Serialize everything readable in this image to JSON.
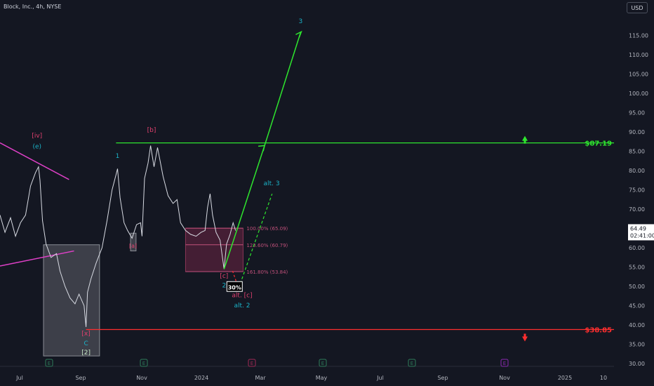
{
  "header": {
    "title": "Block, Inc., 4h, NYSE",
    "currency": "USD"
  },
  "price_tag": {
    "value": "64.49",
    "countdown": "02:41:00"
  },
  "chart_data": {
    "type": "line",
    "title": "Block, Inc., 4h, NYSE",
    "y_axis": {
      "min": 30,
      "max": 115,
      "ticks": [
        30,
        35,
        40,
        45,
        50,
        55,
        60,
        65,
        70,
        75,
        80,
        85,
        90,
        95,
        100,
        105,
        110,
        115
      ],
      "tick_labels": [
        "30.00",
        "35.00",
        "40.00",
        "45.00",
        "50.00",
        "55.00",
        "60.00",
        "65.00",
        "70.00",
        "75.00",
        "80.00",
        "85.00",
        "90.00",
        "95.00",
        "100.00",
        "105.00",
        "110.00",
        "115.00"
      ]
    },
    "x_axis": {
      "tick_labels": [
        "Jul",
        "Sep",
        "Nov",
        "2024",
        "Mar",
        "May",
        "Jul",
        "Sep",
        "Nov",
        "2025",
        "10"
      ]
    },
    "series": [
      {
        "values": [
          [
            "2023-05-15",
            68.5
          ],
          [
            "2023-05-25",
            64.0
          ],
          [
            "2023-06-05",
            67.8
          ],
          [
            "2023-06-15",
            63.0
          ],
          [
            "2023-06-25",
            66.5
          ],
          [
            "2023-07-05",
            68.5
          ],
          [
            "2023-07-15",
            76.0
          ],
          [
            "2023-07-25",
            79.5
          ],
          [
            "2023-07-31",
            81.0
          ],
          [
            "2023-08-03",
            77.5
          ],
          [
            "2023-08-08",
            67.0
          ],
          [
            "2023-08-15",
            61.0
          ],
          [
            "2023-08-25",
            57.5
          ],
          [
            "2023-09-05",
            58.5
          ],
          [
            "2023-09-12",
            54.0
          ],
          [
            "2023-09-22",
            50.0
          ],
          [
            "2023-10-02",
            47.0
          ],
          [
            "2023-10-12",
            45.5
          ],
          [
            "2023-10-20",
            48.0
          ],
          [
            "2023-10-30",
            45.0
          ],
          [
            "2023-11-03",
            39.5
          ],
          [
            "2023-11-06",
            48.5
          ],
          [
            "2023-11-13",
            52.0
          ],
          [
            "2023-11-23",
            56.0
          ],
          [
            "2023-12-05",
            60.0
          ],
          [
            "2023-12-15",
            67.0
          ],
          [
            "2023-12-25",
            75.0
          ],
          [
            "2024-01-02",
            79.0
          ],
          [
            "2024-01-05",
            80.5
          ],
          [
            "2024-01-10",
            73.0
          ],
          [
            "2024-01-18",
            66.5
          ],
          [
            "2024-01-25",
            64.5
          ],
          [
            "2024-02-03",
            62.5
          ],
          [
            "2024-02-12",
            66.0
          ],
          [
            "2024-02-20",
            66.5
          ],
          [
            "2024-02-23",
            63.0
          ],
          [
            "2024-02-28",
            78.0
          ],
          [
            "2024-03-06",
            82.0
          ],
          [
            "2024-03-11",
            86.5
          ],
          [
            "2024-03-18",
            81.0
          ],
          [
            "2024-03-25",
            86.0
          ],
          [
            "2024-04-05",
            78.5
          ],
          [
            "2024-04-15",
            73.5
          ],
          [
            "2024-04-25",
            71.5
          ],
          [
            "2024-05-03",
            72.5
          ],
          [
            "2024-05-10",
            66.5
          ],
          [
            "2024-05-20",
            64.5
          ],
          [
            "2024-05-30",
            63.5
          ],
          [
            "2024-06-10",
            63.0
          ],
          [
            "2024-06-20",
            64.0
          ],
          [
            "2024-06-28",
            64.5
          ],
          [
            "2024-07-03",
            70.5
          ],
          [
            "2024-07-08",
            74.0
          ],
          [
            "2024-07-13",
            68.5
          ],
          [
            "2024-07-20",
            64.0
          ],
          [
            "2024-07-28",
            62.0
          ],
          [
            "2024-08-05",
            54.5
          ],
          [
            "2024-08-10",
            61.0
          ],
          [
            "2024-08-17",
            63.5
          ],
          [
            "2024-08-23",
            66.5
          ],
          [
            "2024-08-28",
            64.49
          ]
        ]
      }
    ],
    "horizontal_levels": [
      {
        "price": 87.19,
        "label": "$87.19",
        "color": "#2ee62e"
      },
      {
        "price": 38.85,
        "label": "$38.85",
        "color": "#ff2e2e"
      }
    ],
    "fib_levels": [
      {
        "label": "100.00% (65.09)",
        "price": 65.09
      },
      {
        "label": "123.60% (60.79)",
        "price": 60.79
      },
      {
        "label": "161.80% (53.84)",
        "price": 53.84
      }
    ],
    "wave_labels": [
      "[iv]",
      "(e)",
      "[x]",
      "C",
      "[2]",
      "1",
      "[a]",
      "[b]",
      "[c]",
      "2",
      "alt. [c]",
      "alt. 2",
      "alt. 3",
      "3"
    ],
    "probability_badge": "30%",
    "earnings_marker": "E",
    "colors": {
      "background": "#141722",
      "price": "#d8dbe3",
      "target": "#2ee62e",
      "stop": "#ff2e2e",
      "zone": "#6b2544",
      "teal": "#1bb3c8",
      "magenta": "#e040c8",
      "box": "#6e717a"
    }
  }
}
